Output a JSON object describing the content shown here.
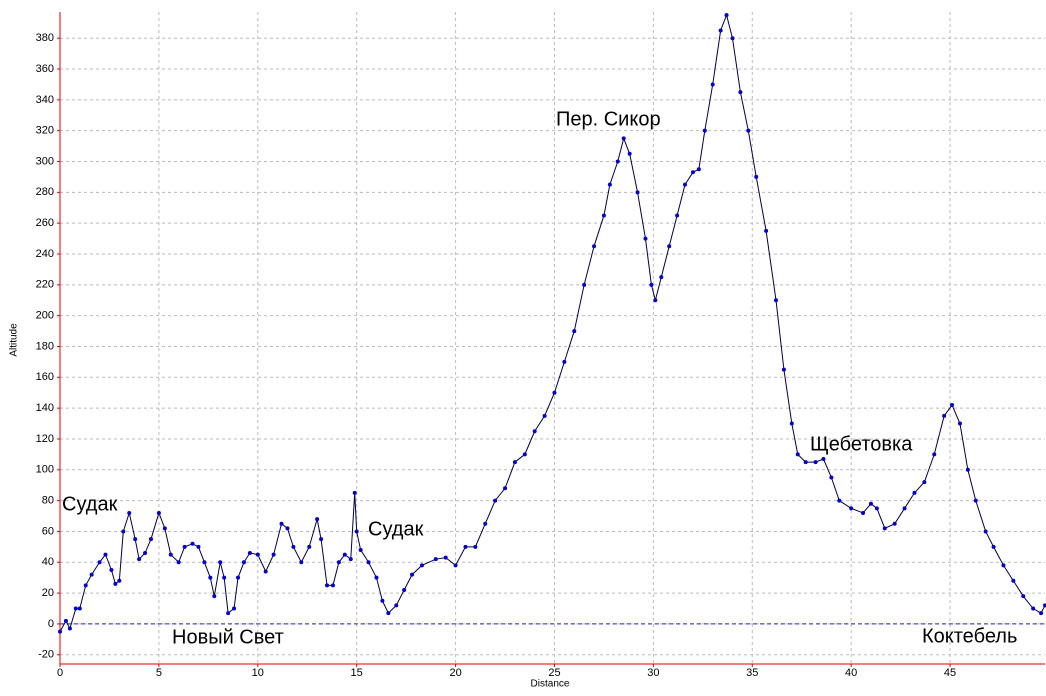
{
  "chart_data": {
    "type": "line",
    "xlabel": "Distance",
    "ylabel": "Altitude",
    "x": [
      0,
      0.3,
      0.5,
      0.8,
      1.0,
      1.3,
      1.6,
      2.0,
      2.3,
      2.6,
      2.8,
      3.0,
      3.2,
      3.5,
      3.8,
      4.0,
      4.3,
      4.6,
      5.0,
      5.3,
      5.6,
      6.0,
      6.3,
      6.7,
      7.0,
      7.3,
      7.6,
      7.8,
      8.1,
      8.3,
      8.5,
      8.8,
      9.0,
      9.3,
      9.6,
      10.0,
      10.4,
      10.8,
      11.2,
      11.5,
      11.8,
      12.2,
      12.6,
      13.0,
      13.2,
      13.5,
      13.8,
      14.1,
      14.4,
      14.7,
      14.9,
      15.0,
      15.2,
      15.6,
      16.0,
      16.3,
      16.6,
      17.0,
      17.4,
      17.8,
      18.3,
      19.0,
      19.5,
      20.0,
      20.5,
      21.0,
      21.5,
      22.0,
      22.5,
      23.0,
      23.5,
      24.0,
      24.5,
      25.0,
      25.5,
      26.0,
      26.5,
      27.0,
      27.5,
      27.8,
      28.2,
      28.5,
      28.8,
      29.2,
      29.6,
      29.9,
      30.1,
      30.4,
      30.8,
      31.2,
      31.6,
      32.0,
      32.3,
      32.6,
      33.0,
      33.4,
      33.7,
      34.0,
      34.4,
      34.8,
      35.2,
      35.7,
      36.2,
      36.6,
      37.0,
      37.3,
      37.7,
      38.2,
      38.6,
      39.0,
      39.4,
      40.0,
      40.6,
      41.0,
      41.3,
      41.7,
      42.2,
      42.7,
      43.2,
      43.7,
      44.2,
      44.7,
      45.1,
      45.5,
      45.9,
      46.3,
      46.8,
      47.2,
      47.7,
      48.2,
      48.7,
      49.2,
      49.6,
      49.8
    ],
    "series": [
      {
        "name": "Altitude",
        "color": "#0000cc",
        "values": [
          -5,
          2,
          -3,
          10,
          10,
          25,
          32,
          40,
          45,
          35,
          26,
          28,
          60,
          72,
          55,
          42,
          46,
          55,
          72,
          62,
          45,
          40,
          50,
          52,
          50,
          40,
          30,
          18,
          40,
          30,
          7,
          10,
          30,
          40,
          46,
          45,
          34,
          45,
          65,
          62,
          50,
          40,
          50,
          68,
          55,
          25,
          25,
          40,
          45,
          42,
          85,
          60,
          48,
          40,
          30,
          15,
          7,
          12,
          22,
          32,
          38,
          42,
          43,
          38,
          50,
          50,
          65,
          80,
          88,
          105,
          110,
          125,
          135,
          150,
          170,
          190,
          220,
          245,
          265,
          285,
          300,
          315,
          305,
          280,
          250,
          220,
          210,
          225,
          245,
          265,
          285,
          293,
          295,
          320,
          350,
          385,
          395,
          380,
          345,
          320,
          290,
          255,
          210,
          165,
          130,
          110,
          105,
          105,
          107,
          95,
          80,
          75,
          72,
          78,
          75,
          62,
          65,
          75,
          85,
          92,
          110,
          135,
          142,
          130,
          100,
          80,
          60,
          50,
          38,
          28,
          18,
          10,
          7,
          12
        ]
      }
    ],
    "xlim": [
      0,
      49.8
    ],
    "ylim": [
      -26,
      397
    ],
    "xticks": [
      0,
      5,
      10,
      15,
      20,
      25,
      30,
      35,
      40,
      45
    ],
    "yticks": [
      -20,
      0,
      20,
      40,
      60,
      80,
      100,
      120,
      140,
      160,
      180,
      200,
      220,
      240,
      260,
      280,
      300,
      320,
      340,
      360,
      380
    ],
    "grid": true,
    "annotations": [
      "Судак",
      "Новый Свет",
      "Судак",
      "Пер. Сикор",
      "Щебетовка",
      "Коктебель"
    ]
  }
}
